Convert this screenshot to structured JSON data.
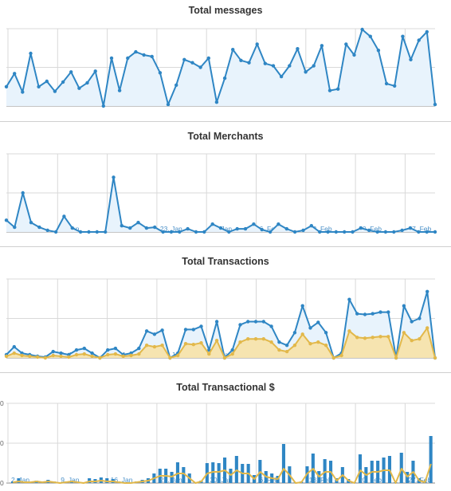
{
  "colors": {
    "messages": "#2f86c4",
    "messages_fill": "#e8f3fc",
    "secondary": "#e2b84a",
    "secondary_fill": "#f6e4b0",
    "grid": "#d9d9d9",
    "baseline": "#888888"
  },
  "x_tick_labels": [
    "2. Jan",
    "9. Jan",
    "16. Jan",
    "23. Jan",
    "30. Jan",
    "6. Feb",
    "13. Feb",
    "20. Feb",
    "27. Feb"
  ],
  "chart_data": [
    {
      "type": "area",
      "title": "Total messages",
      "x_start": "2. Jan",
      "x_end": "29. Feb",
      "grid": true,
      "ylim": [
        0,
        1
      ],
      "series": [
        {
          "values": [
            0.25,
            0.42,
            0.18,
            0.68,
            0.25,
            0.32,
            0.19,
            0.31,
            0.44,
            0.23,
            0.3,
            0.45,
            0.0,
            0.62,
            0.2,
            0.62,
            0.7,
            0.66,
            0.64,
            0.43,
            0.02,
            0.27,
            0.6,
            0.56,
            0.5,
            0.62,
            0.05,
            0.36,
            0.73,
            0.59,
            0.56,
            0.8,
            0.55,
            0.52,
            0.38,
            0.52,
            0.74,
            0.44,
            0.52,
            0.78,
            0.2,
            0.22,
            0.8,
            0.66,
            0.99,
            0.9,
            0.72,
            0.29,
            0.26,
            0.9,
            0.6,
            0.85,
            0.96,
            0.02
          ]
        }
      ]
    },
    {
      "type": "area",
      "title": "Total Merchants",
      "x_start": "2. Jan",
      "x_end": "29. Feb",
      "grid": true,
      "ylim": [
        0,
        1
      ],
      "series": [
        {
          "values": [
            0.15,
            0.06,
            0.5,
            0.12,
            0.06,
            0.02,
            0.0,
            0.2,
            0.05,
            0.0,
            0.0,
            0.0,
            0.0,
            0.7,
            0.08,
            0.05,
            0.12,
            0.05,
            0.06,
            0.0,
            0.0,
            0.0,
            0.04,
            0.0,
            0.0,
            0.1,
            0.05,
            0.0,
            0.04,
            0.04,
            0.1,
            0.03,
            0.0,
            0.1,
            0.04,
            0.0,
            0.02,
            0.08,
            0.0,
            0.0,
            0.0,
            0.0,
            0.0,
            0.05,
            0.02,
            0.0,
            0.0,
            0.0,
            0.02,
            0.05,
            0.0,
            0.0,
            0.0
          ]
        }
      ]
    },
    {
      "type": "area",
      "title": "Total Transactions",
      "x_start": "2. Jan",
      "x_end": "29. Feb",
      "grid": true,
      "ylim": [
        0,
        1
      ],
      "series": [
        {
          "values": [
            0.04,
            0.14,
            0.06,
            0.04,
            0.02,
            0.01,
            0.08,
            0.06,
            0.04,
            0.1,
            0.12,
            0.06,
            0.0,
            0.1,
            0.12,
            0.04,
            0.06,
            0.12,
            0.34,
            0.3,
            0.35,
            0.0,
            0.06,
            0.36,
            0.36,
            0.4,
            0.1,
            0.46,
            0.0,
            0.1,
            0.42,
            0.46,
            0.46,
            0.46,
            0.4,
            0.2,
            0.16,
            0.32,
            0.66,
            0.38,
            0.45,
            0.32,
            0.0,
            0.06,
            0.74,
            0.56,
            0.55,
            0.56,
            0.58,
            0.58,
            0.0,
            0.66,
            0.46,
            0.5,
            0.84,
            0.0
          ]
        },
        {
          "values": [
            0.02,
            0.06,
            0.03,
            0.02,
            0.01,
            0.0,
            0.03,
            0.02,
            0.01,
            0.04,
            0.05,
            0.02,
            0.0,
            0.04,
            0.05,
            0.02,
            0.03,
            0.05,
            0.16,
            0.14,
            0.16,
            0.0,
            0.03,
            0.18,
            0.17,
            0.19,
            0.05,
            0.22,
            0.0,
            0.05,
            0.2,
            0.24,
            0.24,
            0.24,
            0.2,
            0.1,
            0.08,
            0.16,
            0.3,
            0.18,
            0.2,
            0.16,
            0.0,
            0.03,
            0.34,
            0.26,
            0.25,
            0.26,
            0.27,
            0.27,
            0.0,
            0.32,
            0.22,
            0.24,
            0.38,
            0.0
          ]
        }
      ]
    },
    {
      "type": "bar",
      "title": "Total Transactional $",
      "x_start": "2. Jan",
      "x_end": "29. Feb",
      "grid": true,
      "ylim": [
        0,
        1
      ],
      "y_tick_labels": [
        "0",
        "0",
        "0"
      ],
      "series": [
        {
          "values": [
            0.02,
            0.06,
            0.01,
            0.02,
            0.03,
            0.01,
            0.04,
            0.02,
            0.01,
            0.02,
            0.03,
            0.02,
            0.01,
            0.06,
            0.05,
            0.07,
            0.06,
            0.05,
            0.02,
            0.01,
            0.01,
            0.02,
            0.04,
            0.06,
            0.12,
            0.18,
            0.18,
            0.14,
            0.26,
            0.2,
            0.12,
            0.01,
            0.03,
            0.25,
            0.26,
            0.25,
            0.32,
            0.18,
            0.34,
            0.24,
            0.24,
            0.1,
            0.29,
            0.15,
            0.12,
            0.09,
            0.49,
            0.21,
            0.01,
            0.02,
            0.21,
            0.37,
            0.15,
            0.3,
            0.28,
            0.06,
            0.2,
            0.05,
            0.01,
            0.36,
            0.2,
            0.28,
            0.28,
            0.32,
            0.34,
            0.01,
            0.38,
            0.14,
            0.28,
            0.06,
            0.02,
            0.59
          ]
        },
        {
          "values": [
            0.01,
            0.02,
            0.01,
            0.01,
            0.02,
            0.01,
            0.02,
            0.01,
            0.0,
            0.01,
            0.02,
            0.01,
            0.0,
            0.02,
            0.02,
            0.03,
            0.02,
            0.02,
            0.01,
            0.0,
            0.0,
            0.01,
            0.02,
            0.03,
            0.06,
            0.09,
            0.09,
            0.08,
            0.12,
            0.12,
            0.06,
            0.0,
            0.02,
            0.12,
            0.14,
            0.14,
            0.16,
            0.1,
            0.16,
            0.12,
            0.12,
            0.05,
            0.14,
            0.08,
            0.06,
            0.05,
            0.18,
            0.1,
            0.0,
            0.01,
            0.12,
            0.18,
            0.08,
            0.14,
            0.14,
            0.03,
            0.1,
            0.03,
            0.0,
            0.16,
            0.1,
            0.14,
            0.14,
            0.16,
            0.16,
            0.0,
            0.18,
            0.08,
            0.14,
            0.03,
            0.01,
            0.24
          ]
        }
      ]
    }
  ]
}
